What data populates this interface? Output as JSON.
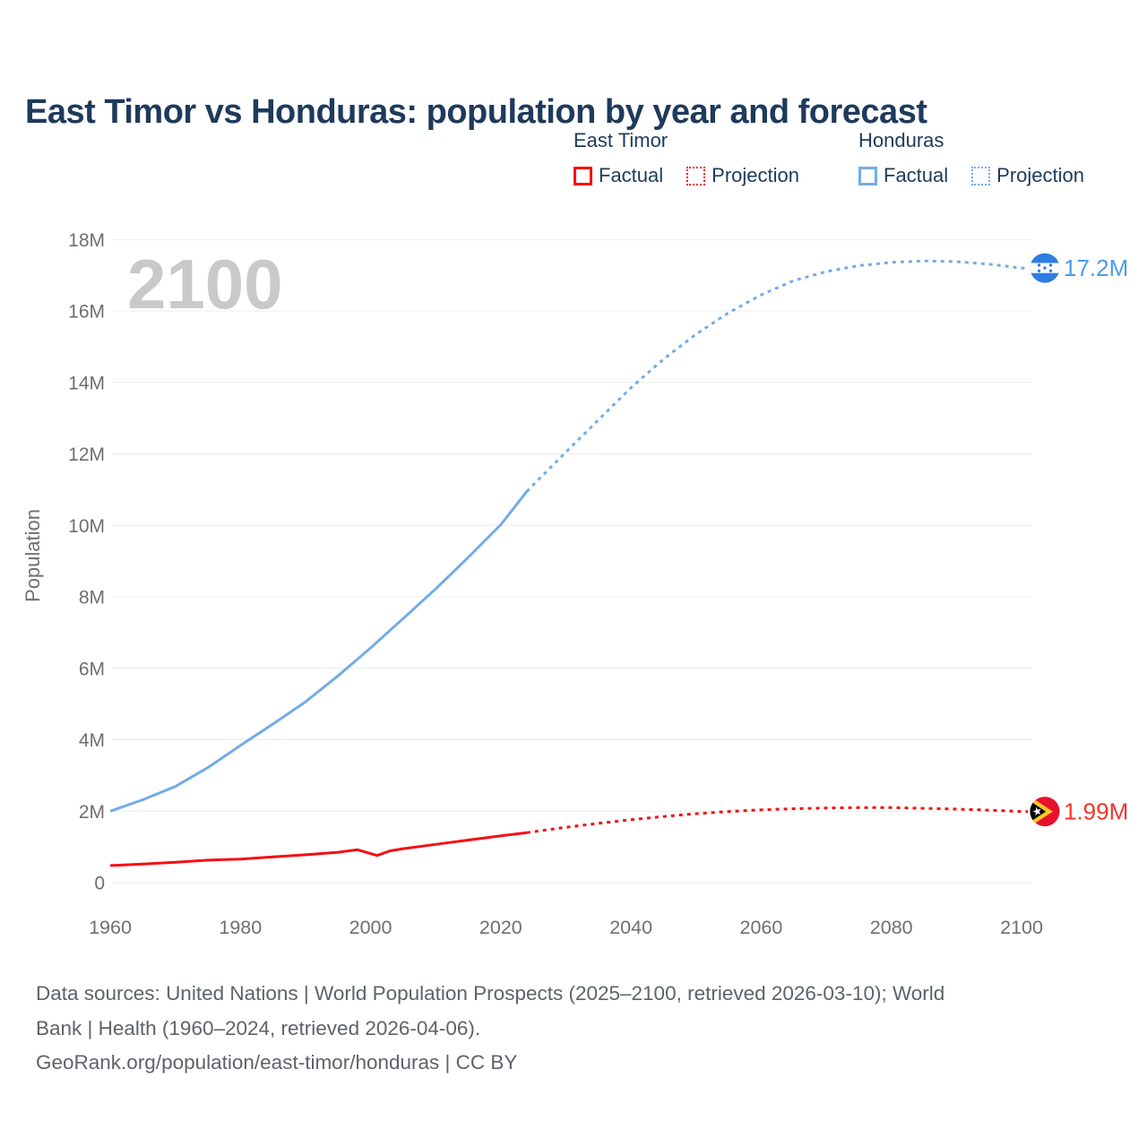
{
  "page": {
    "title": "East Timor vs Honduras: population by year and forecast"
  },
  "legend": {
    "groups": [
      {
        "country": "East Timor",
        "color": "#f40f12",
        "items": [
          {
            "label": "Factual",
            "style": "solid"
          },
          {
            "label": "Projection",
            "style": "dotted"
          }
        ]
      },
      {
        "country": "Honduras",
        "color": "#74abe8",
        "items": [
          {
            "label": "Factual",
            "style": "solid"
          },
          {
            "label": "Projection",
            "style": "dotted"
          }
        ]
      }
    ]
  },
  "chart_data": {
    "type": "line",
    "title": "East Timor vs Honduras: population by year and forecast",
    "xlabel": "",
    "ylabel": "Population",
    "watermark": "2100",
    "xlim": [
      1960,
      2100
    ],
    "ylim_M": [
      0,
      18
    ],
    "grid": "horizontal",
    "x_ticks": [
      1960,
      1980,
      2000,
      2020,
      2040,
      2060,
      2080,
      2100
    ],
    "y_ticks": [
      {
        "value": 0,
        "label": "0"
      },
      {
        "value": 2,
        "label": "2M"
      },
      {
        "value": 4,
        "label": "4M"
      },
      {
        "value": 6,
        "label": "6M"
      },
      {
        "value": 8,
        "label": "8M"
      },
      {
        "value": 10,
        "label": "10M"
      },
      {
        "value": 12,
        "label": "12M"
      },
      {
        "value": 14,
        "label": "14M"
      },
      {
        "value": 16,
        "label": "16M"
      },
      {
        "value": 18,
        "label": "18M"
      }
    ],
    "series": [
      {
        "name": "Honduras Factual",
        "country": "Honduras",
        "style": "solid",
        "color": "#74abe8",
        "points": [
          [
            1960,
            2.0
          ],
          [
            1965,
            2.32
          ],
          [
            1970,
            2.69
          ],
          [
            1975,
            3.22
          ],
          [
            1980,
            3.84
          ],
          [
            1985,
            4.44
          ],
          [
            1990,
            5.06
          ],
          [
            1995,
            5.79
          ],
          [
            2000,
            6.57
          ],
          [
            2005,
            7.39
          ],
          [
            2010,
            8.22
          ],
          [
            2015,
            9.1
          ],
          [
            2020,
            10.02
          ],
          [
            2024,
            10.95
          ]
        ]
      },
      {
        "name": "Honduras Projection",
        "country": "Honduras",
        "style": "dotted",
        "color": "#74abe8",
        "points": [
          [
            2024,
            10.95
          ],
          [
            2030,
            12.05
          ],
          [
            2035,
            12.95
          ],
          [
            2040,
            13.85
          ],
          [
            2045,
            14.65
          ],
          [
            2050,
            15.35
          ],
          [
            2055,
            15.95
          ],
          [
            2060,
            16.45
          ],
          [
            2065,
            16.85
          ],
          [
            2070,
            17.1
          ],
          [
            2075,
            17.27
          ],
          [
            2080,
            17.36
          ],
          [
            2085,
            17.4
          ],
          [
            2090,
            17.38
          ],
          [
            2095,
            17.31
          ],
          [
            2100,
            17.2
          ]
        ]
      },
      {
        "name": "East Timor Factual",
        "country": "East Timor",
        "style": "solid",
        "color": "#f40f12",
        "points": [
          [
            1960,
            0.48
          ],
          [
            1965,
            0.52
          ],
          [
            1970,
            0.57
          ],
          [
            1975,
            0.63
          ],
          [
            1980,
            0.66
          ],
          [
            1985,
            0.72
          ],
          [
            1990,
            0.78
          ],
          [
            1995,
            0.85
          ],
          [
            1998,
            0.92
          ],
          [
            2001,
            0.76
          ],
          [
            2003,
            0.89
          ],
          [
            2005,
            0.95
          ],
          [
            2010,
            1.07
          ],
          [
            2015,
            1.19
          ],
          [
            2020,
            1.31
          ],
          [
            2024,
            1.4
          ]
        ]
      },
      {
        "name": "East Timor Projection",
        "country": "East Timor",
        "style": "dotted",
        "color": "#f40f12",
        "points": [
          [
            2024,
            1.4
          ],
          [
            2030,
            1.55
          ],
          [
            2035,
            1.66
          ],
          [
            2040,
            1.76
          ],
          [
            2045,
            1.85
          ],
          [
            2050,
            1.93
          ],
          [
            2055,
            1.99
          ],
          [
            2060,
            2.04
          ],
          [
            2065,
            2.07
          ],
          [
            2070,
            2.09
          ],
          [
            2075,
            2.1
          ],
          [
            2080,
            2.1
          ],
          [
            2085,
            2.08
          ],
          [
            2090,
            2.06
          ],
          [
            2095,
            2.03
          ],
          [
            2100,
            1.99
          ]
        ]
      }
    ],
    "end_labels": [
      {
        "series": "Honduras",
        "text": "17.2M",
        "value_M": 17.2,
        "color": "#4d9be8",
        "flag": "honduras-flag"
      },
      {
        "series": "East Timor",
        "text": "1.99M",
        "value_M": 1.99,
        "color": "#f4352c",
        "flag": "east-timor-flag"
      }
    ],
    "legend_position": "top-right"
  },
  "footer": {
    "source_line_1": "Data sources: United Nations | World Population Prospects (2025–2100, retrieved 2026-03-10); World",
    "source_line_2": "Bank | Health (1960–2024, retrieved 2026-04-06).",
    "credit_line": "GeoRank.org/population/east-timor/honduras | CC BY"
  }
}
